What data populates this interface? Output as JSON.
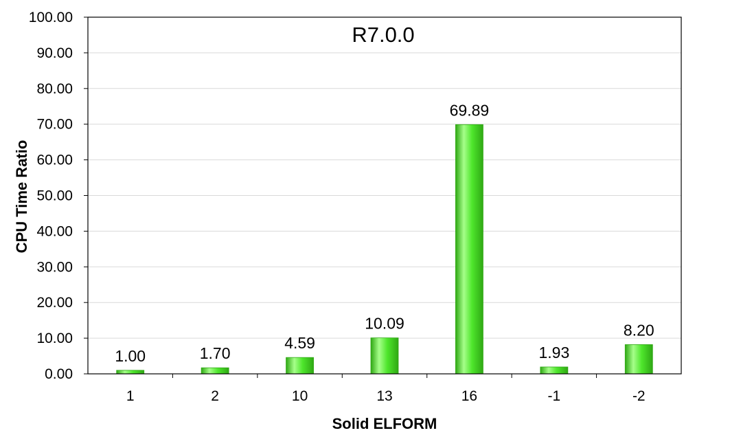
{
  "chart_data": {
    "type": "bar",
    "title": "R7.0.0",
    "xlabel": "Solid ELFORM",
    "ylabel": "CPU Time Ratio",
    "categories": [
      "1",
      "2",
      "10",
      "13",
      "16",
      "-1",
      "-2"
    ],
    "values": [
      1.0,
      1.7,
      4.59,
      10.09,
      69.89,
      1.93,
      8.2
    ],
    "data_labels": [
      "1.00",
      "1.70",
      "4.59",
      "10.09",
      "69.89",
      "1.93",
      "8.20"
    ],
    "ylim": [
      0,
      100
    ],
    "yticks": [
      0,
      10,
      20,
      30,
      40,
      50,
      60,
      70,
      80,
      90,
      100
    ],
    "ytick_labels": [
      "0.00",
      "10.00",
      "20.00",
      "30.00",
      "40.00",
      "50.00",
      "60.00",
      "70.00",
      "80.00",
      "90.00",
      "100.00"
    ],
    "grid": true,
    "legend": "none",
    "colors": {
      "bar": "#4ee62c",
      "bar_light": "#a6ff8a",
      "bar_dark": "#2fa814",
      "grid": "#d9d9d9",
      "axis": "#000000"
    }
  }
}
